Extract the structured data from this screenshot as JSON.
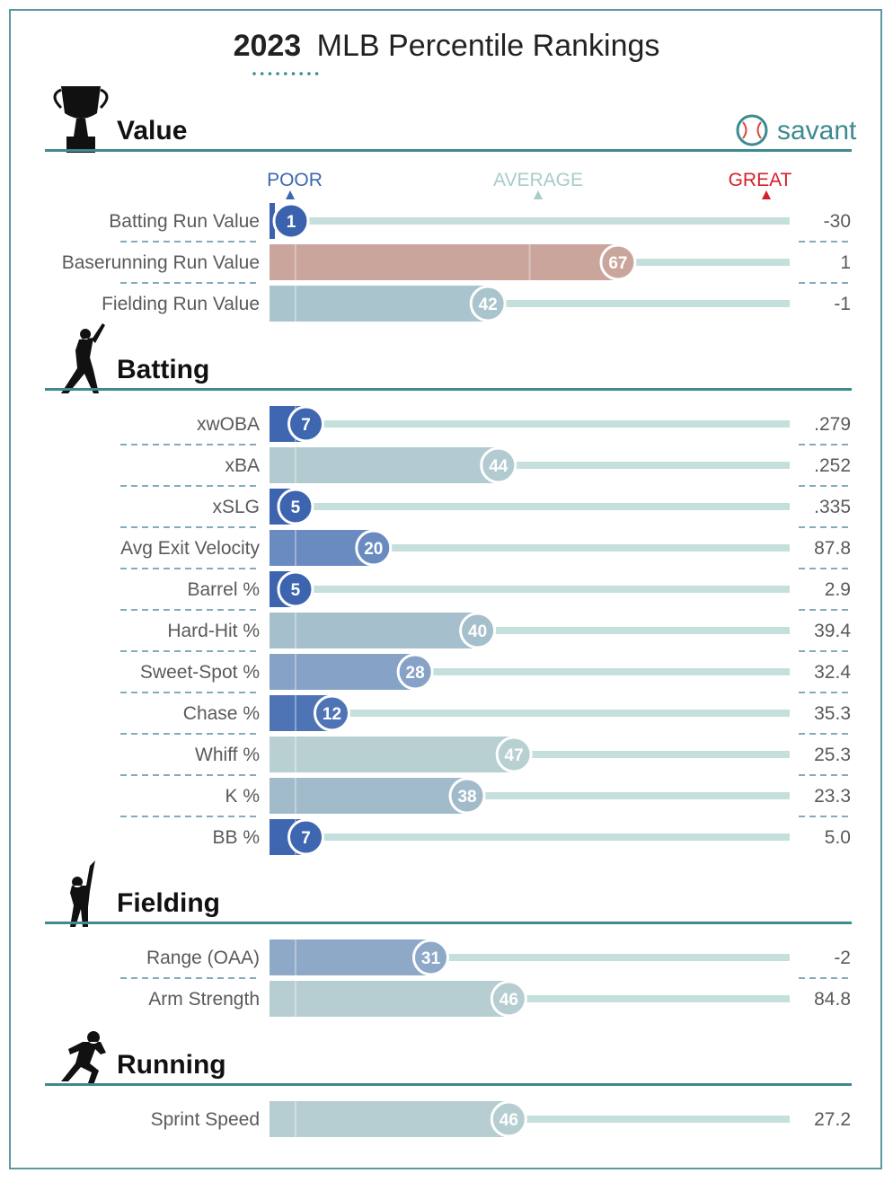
{
  "title": {
    "year": "2023",
    "text": "MLB Percentile Rankings"
  },
  "brand": "savant",
  "scale": {
    "poor": "POOR",
    "average": "AVERAGE",
    "great": "GREAT",
    "poor_color": "#3d67b0",
    "average_color": "#a8ccc9",
    "great_color": "#d5202a"
  },
  "colors": {
    "accent": "#3d8a8f",
    "track": "#c5dfdd"
  },
  "chart_data": {
    "type": "bar",
    "orientation": "horizontal",
    "xlim": [
      0,
      100
    ],
    "sections": [
      {
        "name": "Value",
        "icon": "trophy-icon",
        "metrics": [
          {
            "label": "Batting Run Value",
            "percentile": 1,
            "value": "-30",
            "color": "#3a62ad"
          },
          {
            "label": "Baserunning Run Value",
            "percentile": 67,
            "value": "1",
            "color": "#c9a59c"
          },
          {
            "label": "Fielding Run Value",
            "percentile": 42,
            "value": "-1",
            "color": "#a9c4cc"
          }
        ]
      },
      {
        "name": "Batting",
        "icon": "batter-icon",
        "metrics": [
          {
            "label": "xwOBA",
            "percentile": 7,
            "value": ".279",
            "color": "#3f66b0"
          },
          {
            "label": "xBA",
            "percentile": 44,
            "value": ".252",
            "color": "#b1cbd0"
          },
          {
            "label": "xSLG",
            "percentile": 5,
            "value": ".335",
            "color": "#3d64af"
          },
          {
            "label": "Avg Exit Velocity",
            "percentile": 20,
            "value": "87.8",
            "color": "#6a8bc0"
          },
          {
            "label": "Barrel %",
            "percentile": 5,
            "value": "2.9",
            "color": "#3d64af"
          },
          {
            "label": "Hard-Hit %",
            "percentile": 40,
            "value": "39.4",
            "color": "#a6bfcc"
          },
          {
            "label": "Sweet-Spot %",
            "percentile": 28,
            "value": "32.4",
            "color": "#86a2c6"
          },
          {
            "label": "Chase %",
            "percentile": 12,
            "value": "35.3",
            "color": "#4e74b6"
          },
          {
            "label": "Whiff %",
            "percentile": 47,
            "value": "25.3",
            "color": "#b8d0d2"
          },
          {
            "label": "K %",
            "percentile": 38,
            "value": "23.3",
            "color": "#a1bbcb"
          },
          {
            "label": "BB %",
            "percentile": 7,
            "value": "5.0",
            "color": "#3f66b0"
          }
        ]
      },
      {
        "name": "Fielding",
        "icon": "fielder-icon",
        "metrics": [
          {
            "label": "Range (OAA)",
            "percentile": 31,
            "value": "-2",
            "color": "#8ea8c8"
          },
          {
            "label": "Arm Strength",
            "percentile": 46,
            "value": "84.8",
            "color": "#b6ced1"
          }
        ]
      },
      {
        "name": "Running",
        "icon": "runner-icon",
        "metrics": [
          {
            "label": "Sprint Speed",
            "percentile": 46,
            "value": "27.2",
            "color": "#b6ced1"
          }
        ]
      }
    ]
  }
}
